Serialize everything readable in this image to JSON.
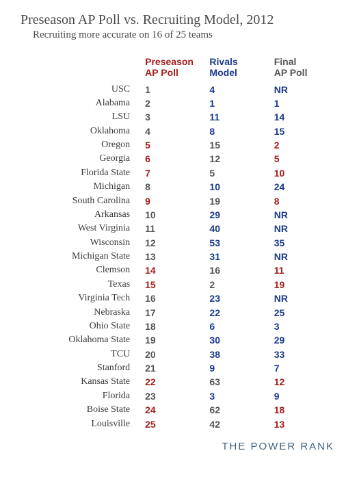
{
  "title": "Preseason AP Poll vs. Recruiting Model, 2012",
  "subtitle": "Recruiting more accurate on 16 of 25 teams",
  "footer": "THE POWER RANK",
  "colors": {
    "red": "#a31e1e",
    "blue": "#1a3a8a",
    "grey": "#555555",
    "text": "#4a4a4a",
    "bg": "#ffffff"
  },
  "columns": {
    "team": "",
    "preseason_l1": "Preseason",
    "preseason_l2": "AP Poll",
    "rivals_l1": "Rivals",
    "rivals_l2": "Model",
    "final_l1": "Final",
    "final_l2": "AP Poll"
  },
  "rows": [
    {
      "team": "USC",
      "pre": "1",
      "riv": "4",
      "fin": "NR",
      "more": "riv"
    },
    {
      "team": "Alabama",
      "pre": "2",
      "riv": "1",
      "fin": "1",
      "more": "riv"
    },
    {
      "team": "LSU",
      "pre": "3",
      "riv": "11",
      "fin": "14",
      "more": "riv"
    },
    {
      "team": "Oklahoma",
      "pre": "4",
      "riv": "8",
      "fin": "15",
      "more": "riv"
    },
    {
      "team": "Oregon",
      "pre": "5",
      "riv": "15",
      "fin": "2",
      "more": "pre"
    },
    {
      "team": "Georgia",
      "pre": "6",
      "riv": "12",
      "fin": "5",
      "more": "pre"
    },
    {
      "team": "Florida State",
      "pre": "7",
      "riv": "5",
      "fin": "10",
      "more": "pre"
    },
    {
      "team": "Michigan",
      "pre": "8",
      "riv": "10",
      "fin": "24",
      "more": "riv"
    },
    {
      "team": "South Carolina",
      "pre": "9",
      "riv": "19",
      "fin": "8",
      "more": "pre"
    },
    {
      "team": "Arkansas",
      "pre": "10",
      "riv": "29",
      "fin": "NR",
      "more": "riv"
    },
    {
      "team": "West Virginia",
      "pre": "11",
      "riv": "40",
      "fin": "NR",
      "more": "riv"
    },
    {
      "team": "Wisconsin",
      "pre": "12",
      "riv": "53",
      "fin": "35",
      "more": "riv"
    },
    {
      "team": "Michigan State",
      "pre": "13",
      "riv": "31",
      "fin": "NR",
      "more": "riv"
    },
    {
      "team": "Clemson",
      "pre": "14",
      "riv": "16",
      "fin": "11",
      "more": "pre"
    },
    {
      "team": "Texas",
      "pre": "15",
      "riv": "2",
      "fin": "19",
      "more": "pre"
    },
    {
      "team": "Virginia Tech",
      "pre": "16",
      "riv": "23",
      "fin": "NR",
      "more": "riv"
    },
    {
      "team": "Nebraska",
      "pre": "17",
      "riv": "22",
      "fin": "25",
      "more": "riv"
    },
    {
      "team": "Ohio State",
      "pre": "18",
      "riv": "6",
      "fin": "3",
      "more": "riv"
    },
    {
      "team": "Oklahoma State",
      "pre": "19",
      "riv": "30",
      "fin": "29",
      "more": "riv"
    },
    {
      "team": "TCU",
      "pre": "20",
      "riv": "38",
      "fin": "33",
      "more": "riv"
    },
    {
      "team": "Stanford",
      "pre": "21",
      "riv": "9",
      "fin": "7",
      "more": "riv"
    },
    {
      "team": "Kansas State",
      "pre": "22",
      "riv": "63",
      "fin": "12",
      "more": "pre"
    },
    {
      "team": "Florida",
      "pre": "23",
      "riv": "3",
      "fin": "9",
      "more": "riv"
    },
    {
      "team": "Boise State",
      "pre": "24",
      "riv": "62",
      "fin": "18",
      "more": "pre"
    },
    {
      "team": "Louisville",
      "pre": "25",
      "riv": "42",
      "fin": "13",
      "more": "pre"
    }
  ]
}
